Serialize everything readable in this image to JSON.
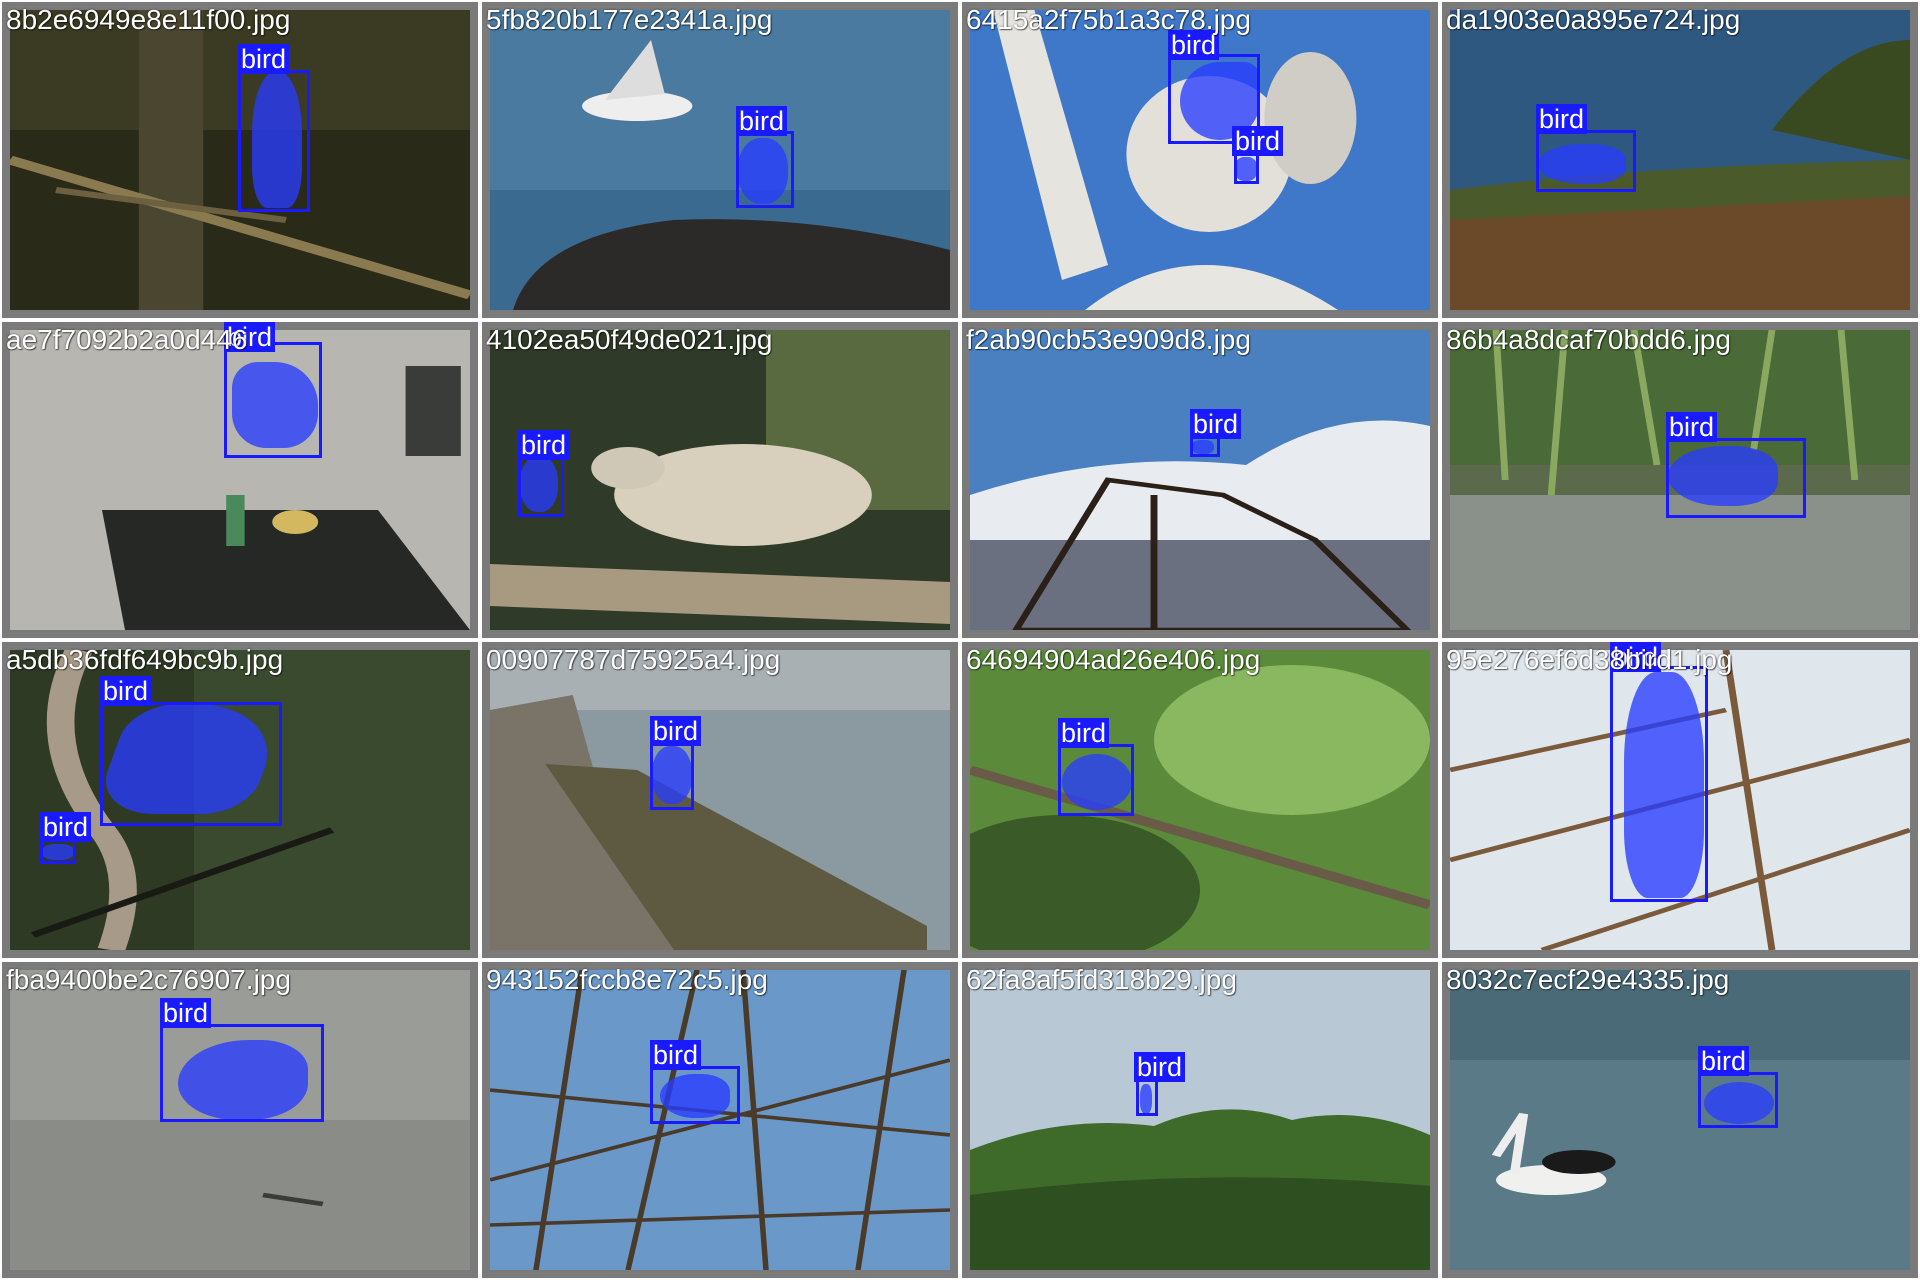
{
  "colors": {
    "box": "#1a1aff",
    "mask": "rgba(40,60,255,0.78)",
    "frame": "#7a7a7a"
  },
  "label": "bird",
  "cells": [
    {
      "file": "8b2e6949e8e11f00.jpg",
      "scene": "forest-dark"
    },
    {
      "file": "5fb820b177e2341a.jpg",
      "scene": "sea-rock"
    },
    {
      "file": "6415a2f75b1a3c78.jpg",
      "scene": "statue-sky"
    },
    {
      "file": "da1903e0a895e724.jpg",
      "scene": "lake-grass"
    },
    {
      "file": "ae7f7092b2a0d446",
      "scene": "pavement"
    },
    {
      "file": "4102ea50f49de021.jpg",
      "scene": "dove-branch"
    },
    {
      "file": "f2ab90cb53e909d8.jpg",
      "scene": "tree-clouds"
    },
    {
      "file": "86b4a8dcaf70bdd6.jpg",
      "scene": "marsh"
    },
    {
      "file": "a5db36fdf649bc9b.jpg",
      "scene": "hummingbird"
    },
    {
      "file": "00907787d75925a4.jpg",
      "scene": "pier"
    },
    {
      "file": "64694904ad26e406.jpg",
      "scene": "green-branch"
    },
    {
      "file": "95e276ef6d38bird1.jpg",
      "scene": "white-branches"
    },
    {
      "file": "fba9400be2c76907.jpg",
      "scene": "water-grey"
    },
    {
      "file": "943152fccb8e72c5.jpg",
      "scene": "bare-tree"
    },
    {
      "file": "62fa8af5fd318b29.jpg",
      "scene": "bushes"
    },
    {
      "file": "8032c7ecf29e4335.jpg",
      "scene": "pelican-water"
    }
  ]
}
